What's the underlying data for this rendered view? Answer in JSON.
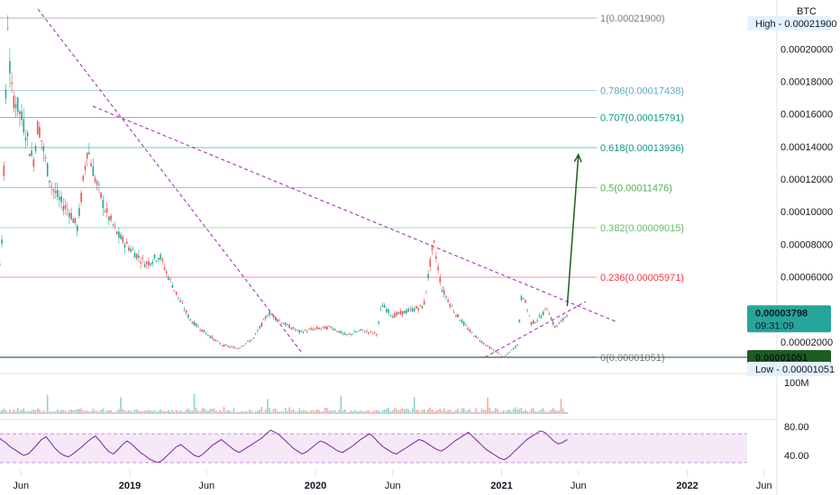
{
  "symbol_currency": "BTC",
  "chart_data": [
    {
      "type": "line",
      "title": "",
      "chart_style": "candlestick",
      "x_axis_labels": [
        "Jun",
        "2019",
        "Jun",
        "2020",
        "Jun",
        "2021",
        "Jun",
        "2022",
        "Jun"
      ],
      "price_axis_labels": [
        "0.00020000",
        "0.00018000",
        "0.00016000",
        "0.00014000",
        "0.00012000",
        "0.00010000",
        "0.00008000",
        "0.00006000",
        "0.00002000"
      ],
      "ylim": [
        0,
        0.000235
      ],
      "current_price": "0.00003798",
      "countdown": "09:31:09",
      "high": {
        "label": "High",
        "value": "0.00021900"
      },
      "low": {
        "label": "Low",
        "value": "0.00001051"
      },
      "low_tag": "0.00001051",
      "fibonacci": [
        {
          "level": "1",
          "price": 0.000219,
          "label": "1(0.00021900)",
          "color": "#787b86"
        },
        {
          "level": "0.786",
          "price": 0.00017438,
          "label": "0.786(0.00017438)",
          "color": "#5fa8c7"
        },
        {
          "level": "0.707",
          "price": 0.00015791,
          "label": "0.707(0.00015791)",
          "color": "#089981"
        },
        {
          "level": "0.618",
          "price": 0.00013936,
          "label": "0.618(0.00013936)",
          "color": "#089981"
        },
        {
          "level": "0.5",
          "price": 0.00011476,
          "label": "0.5(0.00011476)",
          "color": "#4caf50"
        },
        {
          "level": "0.382",
          "price": 9.015e-05,
          "label": "0.382(0.00009015)",
          "color": "#66bb6a"
        },
        {
          "level": "0.236",
          "price": 5.971e-05,
          "label": "0.236(0.00005971)",
          "color": "#f23645"
        },
        {
          "level": "0",
          "price": 1.051e-05,
          "label": "0(0.00001051)",
          "color": "#787b86"
        }
      ],
      "price_series": {
        "name": "",
        "points": [
          [
            "2018-03-01",
            0.000155
          ],
          [
            "2018-03-20",
            0.000105
          ],
          [
            "2018-04-05",
            6.8e-05
          ],
          [
            "2018-04-15",
            4.8e-05
          ],
          [
            "2018-04-25",
            8.5e-05
          ],
          [
            "2018-05-01",
            0.000152
          ],
          [
            "2018-05-06",
            0.000219
          ],
          [
            "2018-05-12",
            0.000175
          ],
          [
            "2018-05-25",
            0.000165
          ],
          [
            "2018-06-10",
            0.00015
          ],
          [
            "2018-06-25",
            0.00013
          ],
          [
            "2018-07-05",
            0.000155
          ],
          [
            "2018-07-20",
            0.00013
          ],
          [
            "2018-08-01",
            0.000115
          ],
          [
            "2018-08-20",
            0.000105
          ],
          [
            "2018-09-05",
            0.0001
          ],
          [
            "2018-09-20",
            9e-05
          ],
          [
            "2018-10-10",
            0.00014
          ],
          [
            "2018-10-25",
            0.00012
          ],
          [
            "2018-11-15",
            0.0001
          ],
          [
            "2018-12-10",
            8.5e-05
          ],
          [
            "2018-12-31",
            7.8e-05
          ],
          [
            "2019-02-01",
            6.8e-05
          ],
          [
            "2019-03-01",
            7.3e-05
          ],
          [
            "2019-03-15",
            6.2e-05
          ],
          [
            "2019-04-10",
            4.5e-05
          ],
          [
            "2019-05-01",
            3.3e-05
          ],
          [
            "2019-06-01",
            2.5e-05
          ],
          [
            "2019-07-01",
            1.8e-05
          ],
          [
            "2019-08-01",
            1.6e-05
          ],
          [
            "2019-09-01",
            2.2e-05
          ],
          [
            "2019-10-01",
            3.8e-05
          ],
          [
            "2019-11-01",
            3.1e-05
          ],
          [
            "2019-12-01",
            2.6e-05
          ],
          [
            "2019-12-31",
            2.8e-05
          ],
          [
            "2020-02-01",
            2.9e-05
          ],
          [
            "2020-03-01",
            2.4e-05
          ],
          [
            "2020-04-01",
            2.7e-05
          ],
          [
            "2020-05-01",
            2.5e-05
          ],
          [
            "2020-05-10",
            4.3e-05
          ],
          [
            "2020-06-01",
            3.6e-05
          ],
          [
            "2020-07-01",
            3.9e-05
          ],
          [
            "2020-08-01",
            4.2e-05
          ],
          [
            "2020-08-20",
            8.2e-05
          ],
          [
            "2020-09-05",
            5.3e-05
          ],
          [
            "2020-10-01",
            3.8e-05
          ],
          [
            "2020-11-01",
            2.6e-05
          ],
          [
            "2020-12-01",
            1.8e-05
          ],
          [
            "2020-12-31",
            1.2e-05
          ],
          [
            "2021-01-05",
            1.05e-05
          ],
          [
            "2021-02-01",
            1.8e-05
          ],
          [
            "2021-02-10",
            5.1e-05
          ],
          [
            "2021-03-01",
            3.1e-05
          ],
          [
            "2021-03-20",
            3.6e-05
          ],
          [
            "2021-04-01",
            4.1e-05
          ],
          [
            "2021-04-15",
            2.9e-05
          ],
          [
            "2021-05-01",
            3.3e-05
          ],
          [
            "2021-05-10",
            3.8e-05
          ]
        ]
      },
      "projection_arrow": {
        "from": [
          "2021-05-10",
          4.2e-05
        ],
        "to": [
          "2021-06-01",
          0.000135
        ]
      },
      "volume_axis_label": "100M",
      "rsi": {
        "axis_labels": [
          "80.00",
          "40.00"
        ],
        "band": [
          30,
          70
        ],
        "values": [
          45,
          62,
          70,
          75,
          72,
          68,
          62,
          58,
          52,
          48,
          44,
          40,
          42,
          48,
          55,
          62,
          66,
          58,
          50,
          44,
          40,
          38,
          42,
          47,
          52,
          58,
          63,
          67,
          60,
          52,
          45,
          42,
          48,
          55,
          60,
          56,
          50,
          44,
          40,
          35,
          32,
          30,
          34,
          40,
          46,
          52,
          55,
          50,
          45,
          40,
          38,
          42,
          48,
          54,
          58,
          62,
          57,
          52,
          47,
          44,
          48,
          52,
          56,
          60,
          64,
          70,
          75,
          72,
          68,
          62,
          56,
          50,
          46,
          42,
          45,
          50,
          55,
          60,
          58,
          54,
          50,
          46,
          44,
          48,
          52,
          57,
          62,
          66,
          70,
          65,
          58,
          52,
          48,
          44,
          42,
          46,
          50,
          54,
          58,
          62,
          60,
          56,
          52,
          48,
          46,
          50,
          55,
          60,
          64,
          68,
          72,
          66,
          60,
          54,
          48,
          44,
          40,
          36,
          34,
          38,
          44,
          50,
          56,
          62,
          66,
          70,
          74,
          72,
          66,
          60,
          56,
          58,
          62
        ]
      }
    }
  ]
}
